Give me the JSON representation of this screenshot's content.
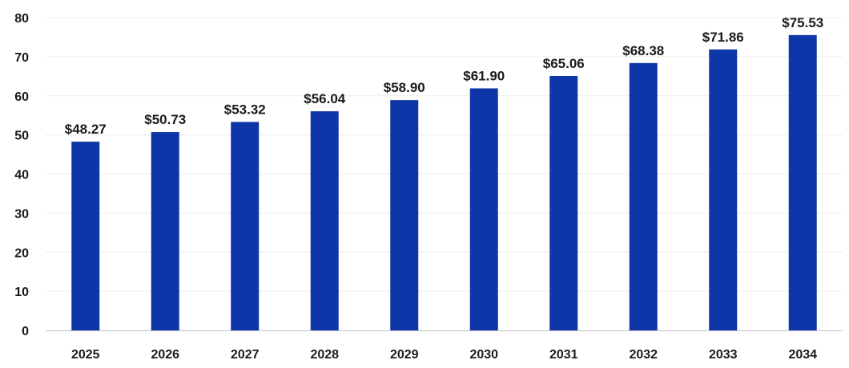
{
  "chart_data": {
    "type": "bar",
    "categories": [
      "2025",
      "2026",
      "2027",
      "2028",
      "2029",
      "2030",
      "2031",
      "2032",
      "2033",
      "2034"
    ],
    "values": [
      48.27,
      50.73,
      53.32,
      56.04,
      58.9,
      61.9,
      65.06,
      68.38,
      71.86,
      75.53
    ],
    "data_labels": [
      "$48.27",
      "$50.73",
      "$53.32",
      "$56.04",
      "$58.90",
      "$61.90",
      "$65.06",
      "$68.38",
      "$71.86",
      "$75.53"
    ],
    "ylim": [
      0,
      80
    ],
    "yticks": [
      "0",
      "10",
      "20",
      "30",
      "40",
      "50",
      "60",
      "70",
      "80"
    ],
    "grid": true,
    "legend": "none",
    "bar_color": "#0f36a8"
  }
}
